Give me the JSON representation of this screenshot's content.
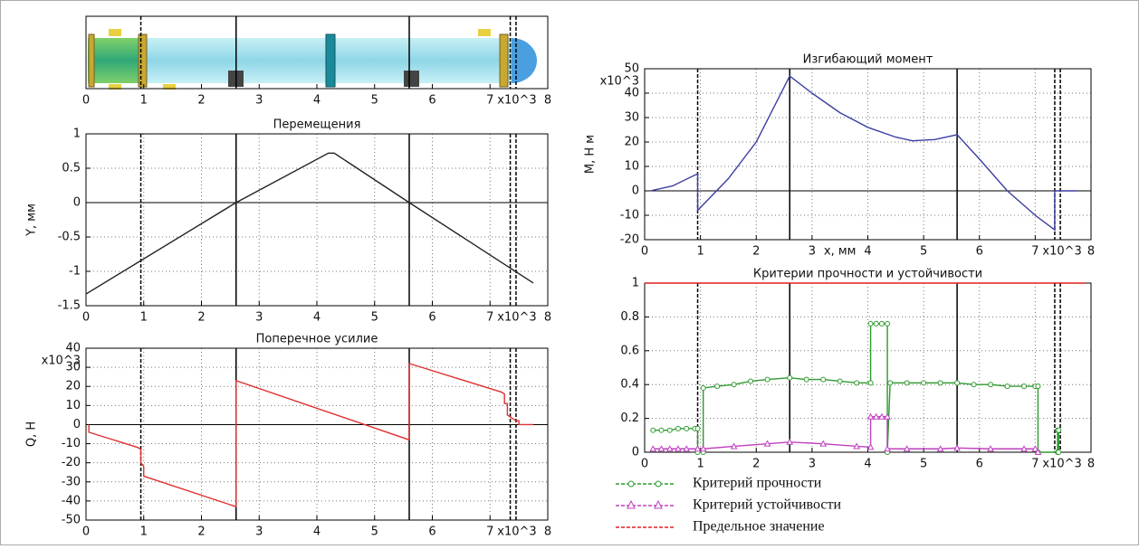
{
  "chart_data": [
    {
      "type": "schematic",
      "xlim": [
        0,
        8
      ],
      "xticks": [
        0,
        1,
        2,
        3,
        4,
        5,
        6,
        7,
        8
      ],
      "x_multiplier": "x10^3",
      "markers": {
        "solid": [
          2.6,
          5.6
        ],
        "dashed": [
          0.95,
          7.35,
          7.45
        ]
      }
    },
    {
      "type": "line",
      "title": "Перемещения",
      "ylabel": "Y, мм",
      "xlim": [
        0,
        8
      ],
      "xticks": [
        0,
        1,
        2,
        3,
        4,
        5,
        6,
        7,
        8
      ],
      "x_multiplier": "x10^3",
      "ylim": [
        -1.5,
        1
      ],
      "yticks": [
        1,
        0.5,
        0,
        -0.5,
        -1,
        -1.5
      ],
      "grid": true,
      "markers": {
        "solid": [
          2.6,
          5.6
        ],
        "dashed": [
          0.95,
          7.35,
          7.45
        ]
      },
      "series": [
        {
          "color": "#222222",
          "x": [
            0,
            2.6,
            4.2,
            4.3,
            5.6,
            7.75
          ],
          "values": [
            -1.33,
            0,
            0.72,
            0.72,
            0,
            -1.17
          ]
        }
      ]
    },
    {
      "type": "line",
      "title": "Поперечное усилие",
      "ylabel": "Q, Н",
      "y_multiplier": "x10^3",
      "xlim": [
        0,
        8
      ],
      "xticks": [
        0,
        1,
        2,
        3,
        4,
        5,
        6,
        7,
        8
      ],
      "x_multiplier": "x10^3",
      "ylim": [
        -50,
        40
      ],
      "yticks": [
        40,
        30,
        20,
        10,
        0,
        -10,
        -20,
        -30,
        -40,
        -50
      ],
      "grid": true,
      "markers": {
        "solid": [
          2.6,
          5.6
        ],
        "dashed": [
          0.95,
          7.35,
          7.45
        ]
      },
      "series": [
        {
          "color": "#e03030",
          "x": [
            0.05,
            0.05,
            0.9,
            0.95,
            0.95,
            1.0,
            1.0,
            2.6,
            2.6,
            5.6,
            5.6,
            7.2,
            7.25,
            7.25,
            7.3,
            7.3,
            7.45,
            7.5,
            7.5,
            7.75
          ],
          "values": [
            0,
            -4,
            -12,
            -13,
            -20,
            -22,
            -27,
            -43,
            23,
            -8,
            32,
            17,
            16,
            11,
            11,
            5,
            2,
            2,
            0,
            0
          ]
        }
      ]
    },
    {
      "type": "line",
      "title": "Изгибающий момент",
      "ylabel": "M, Н м",
      "xlabel": "x, мм",
      "y_multiplier": "x10^3",
      "xlim": [
        0,
        8
      ],
      "xticks": [
        0,
        1,
        2,
        3,
        4,
        5,
        6,
        7,
        8
      ],
      "x_multiplier": "x10^3",
      "ylim": [
        -20,
        50
      ],
      "yticks": [
        50,
        40,
        30,
        20,
        10,
        0,
        -10,
        -20
      ],
      "grid": true,
      "markers": {
        "solid": [
          2.6,
          5.6
        ],
        "dashed": [
          0.95,
          7.35,
          7.45
        ]
      },
      "series": [
        {
          "color": "#3b3fa0",
          "x": [
            0.1,
            0.5,
            0.95,
            0.95,
            1.5,
            2,
            2.6,
            3,
            3.5,
            4,
            4.5,
            4.8,
            5.2,
            5.6,
            6,
            6.5,
            7,
            7.35,
            7.35,
            7.75
          ],
          "values": [
            0,
            2,
            7,
            -8,
            5,
            20,
            47,
            40,
            32,
            26,
            22,
            20.5,
            21,
            23,
            13,
            0,
            -10,
            -16,
            0,
            0
          ]
        }
      ]
    },
    {
      "type": "line",
      "title": "Критерии прочности и устойчивости",
      "xlim": [
        0,
        8
      ],
      "xticks": [
        0,
        1,
        2,
        3,
        4,
        5,
        6,
        7,
        8
      ],
      "x_multiplier": "x10^3",
      "ylim": [
        0,
        1
      ],
      "yticks": [
        1,
        0.8,
        0.6,
        0.4,
        0.2,
        0
      ],
      "grid": true,
      "markers": {
        "solid": [
          2.6,
          5.6
        ],
        "dashed": [
          0.95,
          7.35,
          7.45
        ]
      },
      "series": [
        {
          "name": "Критерий прочности",
          "color": "#2e9a2e",
          "marker": "circle",
          "x": [
            0.15,
            0.3,
            0.45,
            0.6,
            0.75,
            0.9,
            0.95,
            0.95,
            1.05,
            1.05,
            1.3,
            1.6,
            1.9,
            2.2,
            2.6,
            2.9,
            3.2,
            3.5,
            3.8,
            4.05,
            4.05,
            4.15,
            4.25,
            4.35,
            4.35,
            4.4,
            4.7,
            5.0,
            5.3,
            5.6,
            5.9,
            6.2,
            6.5,
            6.8,
            7.0,
            7.05,
            7.05,
            7.4,
            7.4,
            7.42,
            7.42
          ],
          "values": [
            0.13,
            0.13,
            0.13,
            0.14,
            0.14,
            0.14,
            0.14,
            0,
            0,
            0.38,
            0.39,
            0.4,
            0.42,
            0.43,
            0.44,
            0.43,
            0.43,
            0.42,
            0.41,
            0.41,
            0.76,
            0.76,
            0.76,
            0.76,
            0,
            0.41,
            0.41,
            0.41,
            0.41,
            0.41,
            0.4,
            0.4,
            0.39,
            0.39,
            0.39,
            0.39,
            0,
            0,
            0.13,
            0.13,
            0
          ]
        },
        {
          "name": "Критерий устойчивости",
          "color": "#c040c0",
          "marker": "triangle",
          "x": [
            0.15,
            0.3,
            0.45,
            0.6,
            0.75,
            0.95,
            1.05,
            1.6,
            2.2,
            2.6,
            3.2,
            3.8,
            4.05,
            4.05,
            4.15,
            4.25,
            4.35,
            4.35,
            4.7,
            5.3,
            5.6,
            6.2,
            6.8,
            7.0,
            7.05
          ],
          "values": [
            0.02,
            0.02,
            0.02,
            0.02,
            0.02,
            0.02,
            0.02,
            0.035,
            0.05,
            0.06,
            0.05,
            0.035,
            0.03,
            0.21,
            0.21,
            0.21,
            0.21,
            0.02,
            0.02,
            0.02,
            0.025,
            0.02,
            0.02,
            0.02,
            0
          ]
        },
        {
          "name": "Предельное значение",
          "color": "#e02020",
          "x": [
            0,
            7.9
          ],
          "values": [
            1,
            1
          ]
        }
      ]
    }
  ]
}
